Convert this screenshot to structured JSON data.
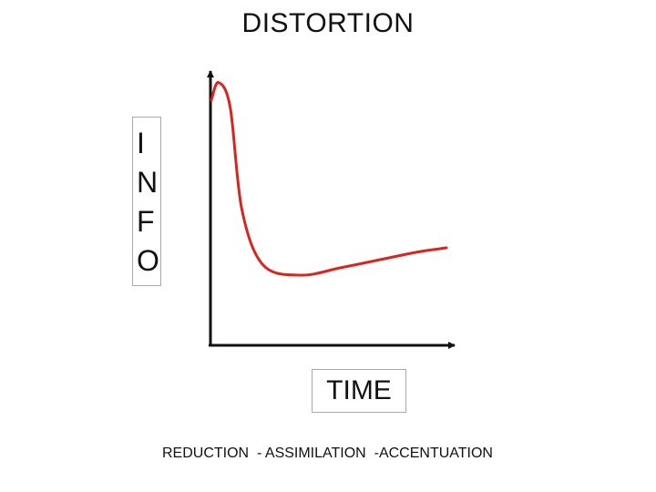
{
  "title": "DISTORTION",
  "y_axis_label": "INFO",
  "x_axis_label": "TIME",
  "caption": "REDUCTION  - ASSIMILATION  -ACCENTUATION",
  "colors": {
    "curve": "#d8261f",
    "axes": "#111111",
    "label_box_border": "#a9a9a9"
  },
  "chart_data": {
    "type": "line",
    "xlabel": "TIME",
    "ylabel": "INFO",
    "grid": false,
    "axis_ticks": false,
    "series": [
      {
        "trend": "peaks near the start, falls steeply, bottoms out, then rises gently",
        "shape_fractions": [
          [
            0.0,
            0.9
          ],
          [
            0.03,
            0.965
          ],
          [
            0.08,
            0.875
          ],
          [
            0.13,
            0.5
          ],
          [
            0.22,
            0.297
          ],
          [
            0.38,
            0.26
          ],
          [
            0.55,
            0.287
          ],
          [
            0.72,
            0.317
          ],
          [
            0.88,
            0.345
          ],
          [
            1.0,
            0.36
          ]
        ]
      }
    ]
  }
}
